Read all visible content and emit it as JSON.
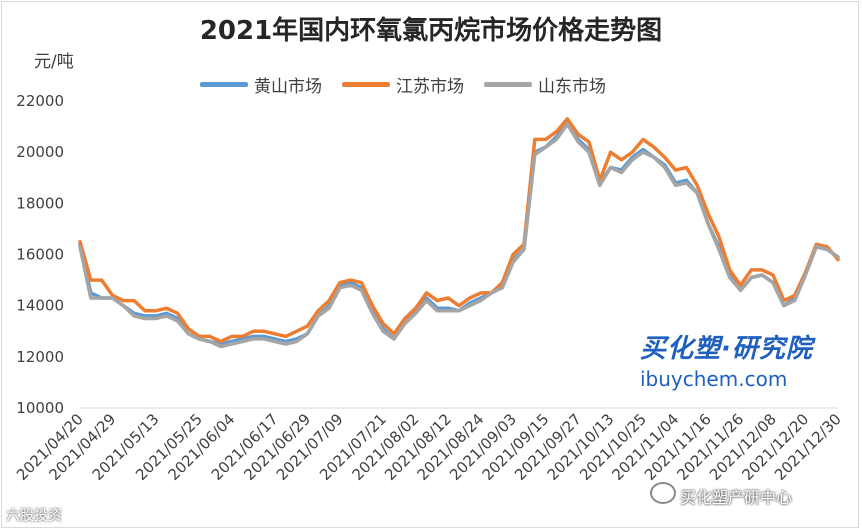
{
  "chart_data": {
    "type": "line",
    "title": "2021年国内环氧氯丙烷市场价格走势图",
    "ylabel": "元/吨",
    "xlabel": "",
    "ylim": [
      10000,
      22000
    ],
    "yticks": [
      10000,
      12000,
      14000,
      16000,
      18000,
      20000,
      22000
    ],
    "grid": "none",
    "legend": "top",
    "x": [
      "2021/04/20",
      "2021/04/23",
      "2021/04/26",
      "2021/04/29",
      "2021/05/03",
      "2021/05/06",
      "2021/05/09",
      "2021/05/13",
      "2021/05/16",
      "2021/05/19",
      "2021/05/22",
      "2021/05/25",
      "2021/05/28",
      "2021/05/31",
      "2021/06/04",
      "2021/06/07",
      "2021/06/10",
      "2021/06/13",
      "2021/06/17",
      "2021/06/20",
      "2021/06/23",
      "2021/06/29",
      "2021/07/02",
      "2021/07/05",
      "2021/07/09",
      "2021/07/12",
      "2021/07/15",
      "2021/07/18",
      "2021/07/21",
      "2021/07/24",
      "2021/07/27",
      "2021/08/02",
      "2021/08/05",
      "2021/08/08",
      "2021/08/12",
      "2021/08/15",
      "2021/08/18",
      "2021/08/24",
      "2021/08/27",
      "2021/08/30",
      "2021/09/03",
      "2021/09/06",
      "2021/09/09",
      "2021/09/15",
      "2021/09/18",
      "2021/09/21",
      "2021/09/27",
      "2021/09/30",
      "2021/10/03",
      "2021/10/13",
      "2021/10/16",
      "2021/10/19",
      "2021/10/25",
      "2021/10/28",
      "2021/10/31",
      "2021/11/04",
      "2021/11/07",
      "2021/11/10",
      "2021/11/16",
      "2021/11/19",
      "2021/11/22",
      "2021/11/26",
      "2021/11/29",
      "2021/12/02",
      "2021/12/08",
      "2021/12/11",
      "2021/12/14",
      "2021/12/20",
      "2021/12/23",
      "2021/12/26",
      "2021/12/30"
    ],
    "xtick_labels": [
      "2021/04/20",
      "2021/04/29",
      "2021/05/13",
      "2021/05/25",
      "2021/06/04",
      "2021/06/17",
      "2021/06/29",
      "2021/07/09",
      "2021/07/21",
      "2021/08/02",
      "2021/08/12",
      "2021/08/24",
      "2021/09/03",
      "2021/09/15",
      "2021/09/27",
      "2021/10/13",
      "2021/10/25",
      "2021/11/04",
      "2021/11/16",
      "2021/11/26",
      "2021/12/08",
      "2021/12/20",
      "2021/12/30"
    ],
    "series": [
      {
        "name": "黄山市场",
        "color": "#5b9bd5",
        "values": [
          16400,
          14500,
          14300,
          14300,
          14000,
          13700,
          13600,
          13600,
          13700,
          13500,
          12900,
          12700,
          12600,
          12500,
          12600,
          12700,
          12800,
          12800,
          12700,
          12600,
          12700,
          12900,
          13600,
          14000,
          14800,
          14900,
          14700,
          13800,
          13100,
          12700,
          13500,
          13800,
          14300,
          13900,
          13900,
          13800,
          14100,
          14300,
          14500,
          14800,
          15800,
          16200,
          20000,
          20200,
          20600,
          21100,
          20500,
          20100,
          18800,
          19400,
          19300,
          19800,
          20100,
          19800,
          19500,
          18800,
          18900,
          18400,
          17200,
          16300,
          15200,
          14600,
          15100,
          15200,
          14900,
          14000,
          14300,
          15300,
          16300,
          16200,
          15900
        ]
      },
      {
        "name": "江苏市场",
        "color": "#ed7d31",
        "values": [
          16500,
          15000,
          15000,
          14400,
          14200,
          14200,
          13800,
          13800,
          13900,
          13700,
          13100,
          12800,
          12800,
          12600,
          12800,
          12800,
          13000,
          13000,
          12900,
          12800,
          13000,
          13200,
          13800,
          14200,
          14900,
          15000,
          14900,
          14000,
          13300,
          12900,
          13500,
          13900,
          14500,
          14200,
          14300,
          14000,
          14300,
          14500,
          14500,
          14900,
          16000,
          16400,
          20500,
          20500,
          20800,
          21300,
          20700,
          20400,
          18900,
          20000,
          19700,
          20000,
          20500,
          20200,
          19800,
          19300,
          19400,
          18700,
          17600,
          16700,
          15400,
          14800,
          15400,
          15400,
          15200,
          14200,
          14400,
          15300,
          16400,
          16300,
          15800
        ]
      },
      {
        "name": "山东市场",
        "color": "#a5a5a5",
        "values": [
          16300,
          14300,
          14300,
          14300,
          14000,
          13600,
          13500,
          13500,
          13600,
          13400,
          12900,
          12700,
          12600,
          12400,
          12500,
          12600,
          12700,
          12700,
          12600,
          12500,
          12600,
          12900,
          13600,
          13900,
          14700,
          14800,
          14600,
          13700,
          13000,
          12700,
          13300,
          13700,
          14200,
          13800,
          13800,
          13800,
          14000,
          14200,
          14500,
          14700,
          15700,
          16200,
          19900,
          20200,
          20500,
          21100,
          20400,
          20000,
          18700,
          19400,
          19200,
          19700,
          20000,
          19800,
          19400,
          18700,
          18800,
          18400,
          17200,
          16200,
          15100,
          14600,
          15100,
          15200,
          14900,
          14000,
          14200,
          15200,
          16300,
          16200,
          15900
        ]
      }
    ]
  },
  "brand": {
    "name_cn": "买化塑·研究院",
    "url": "ibuychem.com"
  },
  "source_label": "买化塑产研中心",
  "watermark": "六股投资",
  "colors": {
    "brand": "#1f5fbf",
    "text": "#404040"
  }
}
